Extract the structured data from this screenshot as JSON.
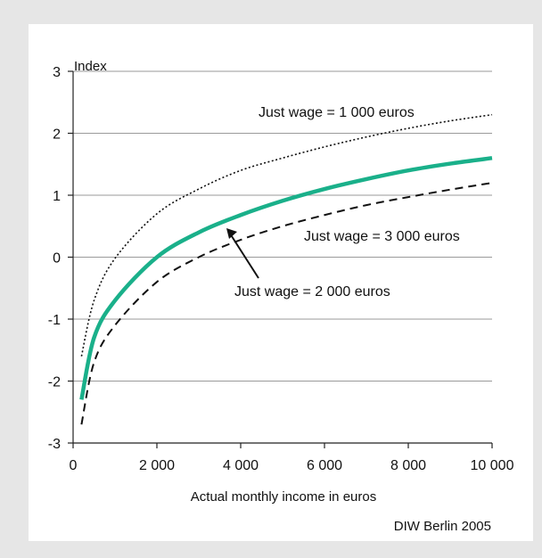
{
  "chart_data": {
    "type": "line",
    "ylabel": "Index",
    "xlabel": "Actual monthly income in euros",
    "xlim": [
      0,
      10000
    ],
    "ylim": [
      -3,
      3
    ],
    "x_ticks": [
      0,
      2000,
      4000,
      6000,
      8000,
      10000
    ],
    "x_tick_labels": [
      "0",
      "2 000",
      "4 000",
      "6 000",
      "8 000",
      "10 000"
    ],
    "y_ticks": [
      -3,
      -2,
      -1,
      0,
      1,
      2,
      3
    ],
    "y_tick_labels": [
      "-3",
      "-2",
      "-1",
      "0",
      "1",
      "2",
      "3"
    ],
    "grid": "horizontal",
    "series": [
      {
        "name": "Just wage = 1 000 euros",
        "style": "dotted",
        "color": "#111111",
        "x": [
          200,
          500,
          1000,
          2000,
          3000,
          4000,
          5000,
          6000,
          7000,
          8000,
          9000,
          10000
        ],
        "y": [
          -1.6,
          -0.7,
          -0.02,
          0.7,
          1.1,
          1.4,
          1.6,
          1.78,
          1.94,
          2.08,
          2.2,
          2.3
        ]
      },
      {
        "name": "Just wage = 2 000 euros",
        "style": "solid",
        "color": "#1ab08a",
        "x": [
          200,
          500,
          1000,
          2000,
          3000,
          4000,
          5000,
          6000,
          7000,
          8000,
          9000,
          10000
        ],
        "y": [
          -2.3,
          -1.3,
          -0.7,
          0.0,
          0.4,
          0.68,
          0.91,
          1.1,
          1.26,
          1.4,
          1.51,
          1.6
        ]
      },
      {
        "name": "Just wage = 3 000 euros",
        "style": "dashed",
        "color": "#111111",
        "x": [
          200,
          500,
          1000,
          2000,
          3000,
          4000,
          5000,
          6000,
          7000,
          8000,
          9000,
          10000
        ],
        "y": [
          -2.7,
          -1.7,
          -1.1,
          -0.4,
          0.0,
          0.28,
          0.5,
          0.68,
          0.84,
          0.97,
          1.09,
          1.2
        ]
      }
    ],
    "annotations": [
      {
        "text": "Just wage = 1 000 euros",
        "series": 0
      },
      {
        "text": "Just wage = 3 000 euros",
        "series": 2
      },
      {
        "text": "Just wage = 2 000 euros",
        "series": 1,
        "arrow": true
      }
    ],
    "source": "DIW Berlin 2005"
  }
}
